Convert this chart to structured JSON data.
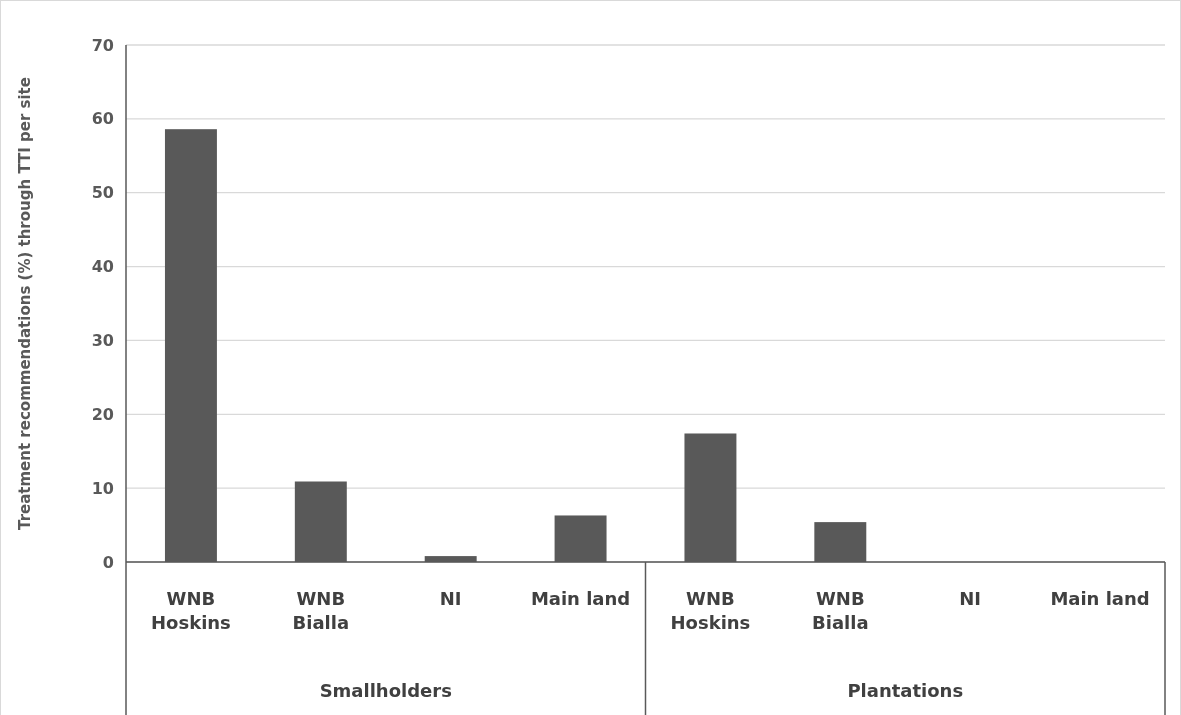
{
  "chart_data": {
    "type": "bar",
    "ylabel": "Treatment recommendations (%) through TTI  per site",
    "categories": [
      "WNB\nHoskins",
      "WNB\nBialla",
      "NI",
      "Main land",
      "WNB\nHoskins",
      "WNB\nBialla",
      "NI",
      "Main land"
    ],
    "values": [
      58.6,
      10.9,
      0.8,
      6.3,
      17.4,
      5.4,
      0,
      0
    ],
    "color": "#595959",
    "ylim": [
      0,
      70
    ],
    "yticks": [
      0,
      10,
      20,
      30,
      40,
      50,
      60,
      70
    ],
    "grid": "y",
    "annotations": [
      "Smallholders",
      "Plantations"
    ]
  }
}
